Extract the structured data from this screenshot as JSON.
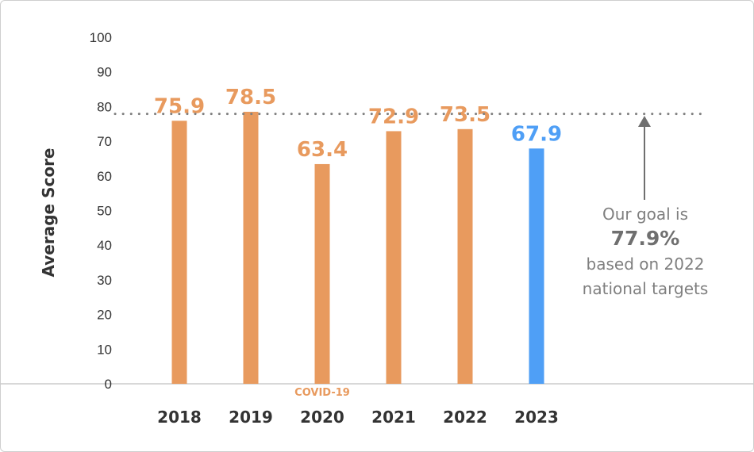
{
  "chart_data": {
    "type": "bar",
    "categories": [
      "2018",
      "2019",
      "2020",
      "2021",
      "2022",
      "2023"
    ],
    "values": [
      75.9,
      78.5,
      63.4,
      72.9,
      73.5,
      67.9
    ],
    "value_labels": [
      "75.9",
      "78.5",
      "63.4",
      "72.9",
      "73.5",
      "67.9"
    ],
    "bar_colors": [
      "#e89a5e",
      "#e89a5e",
      "#e89a5e",
      "#e89a5e",
      "#e89a5e",
      "#4f9ff6"
    ],
    "ylabel": "Average Score",
    "xlabel": "",
    "ylim": [
      0,
      100
    ],
    "yticks": [
      0,
      10,
      20,
      30,
      40,
      50,
      60,
      70,
      80,
      90,
      100
    ],
    "goal_value": 77.9,
    "annotations": {
      "covid_note": "COVID-19",
      "goal_line1": "Our goal is",
      "goal_value_label": "77.9%",
      "goal_line3": "based on 2022",
      "goal_line4": "national targets"
    },
    "colors": {
      "orange": "#e89a5e",
      "blue": "#4f9ff6",
      "goal": "#7f7f7f",
      "axis": "#cccccc"
    }
  }
}
